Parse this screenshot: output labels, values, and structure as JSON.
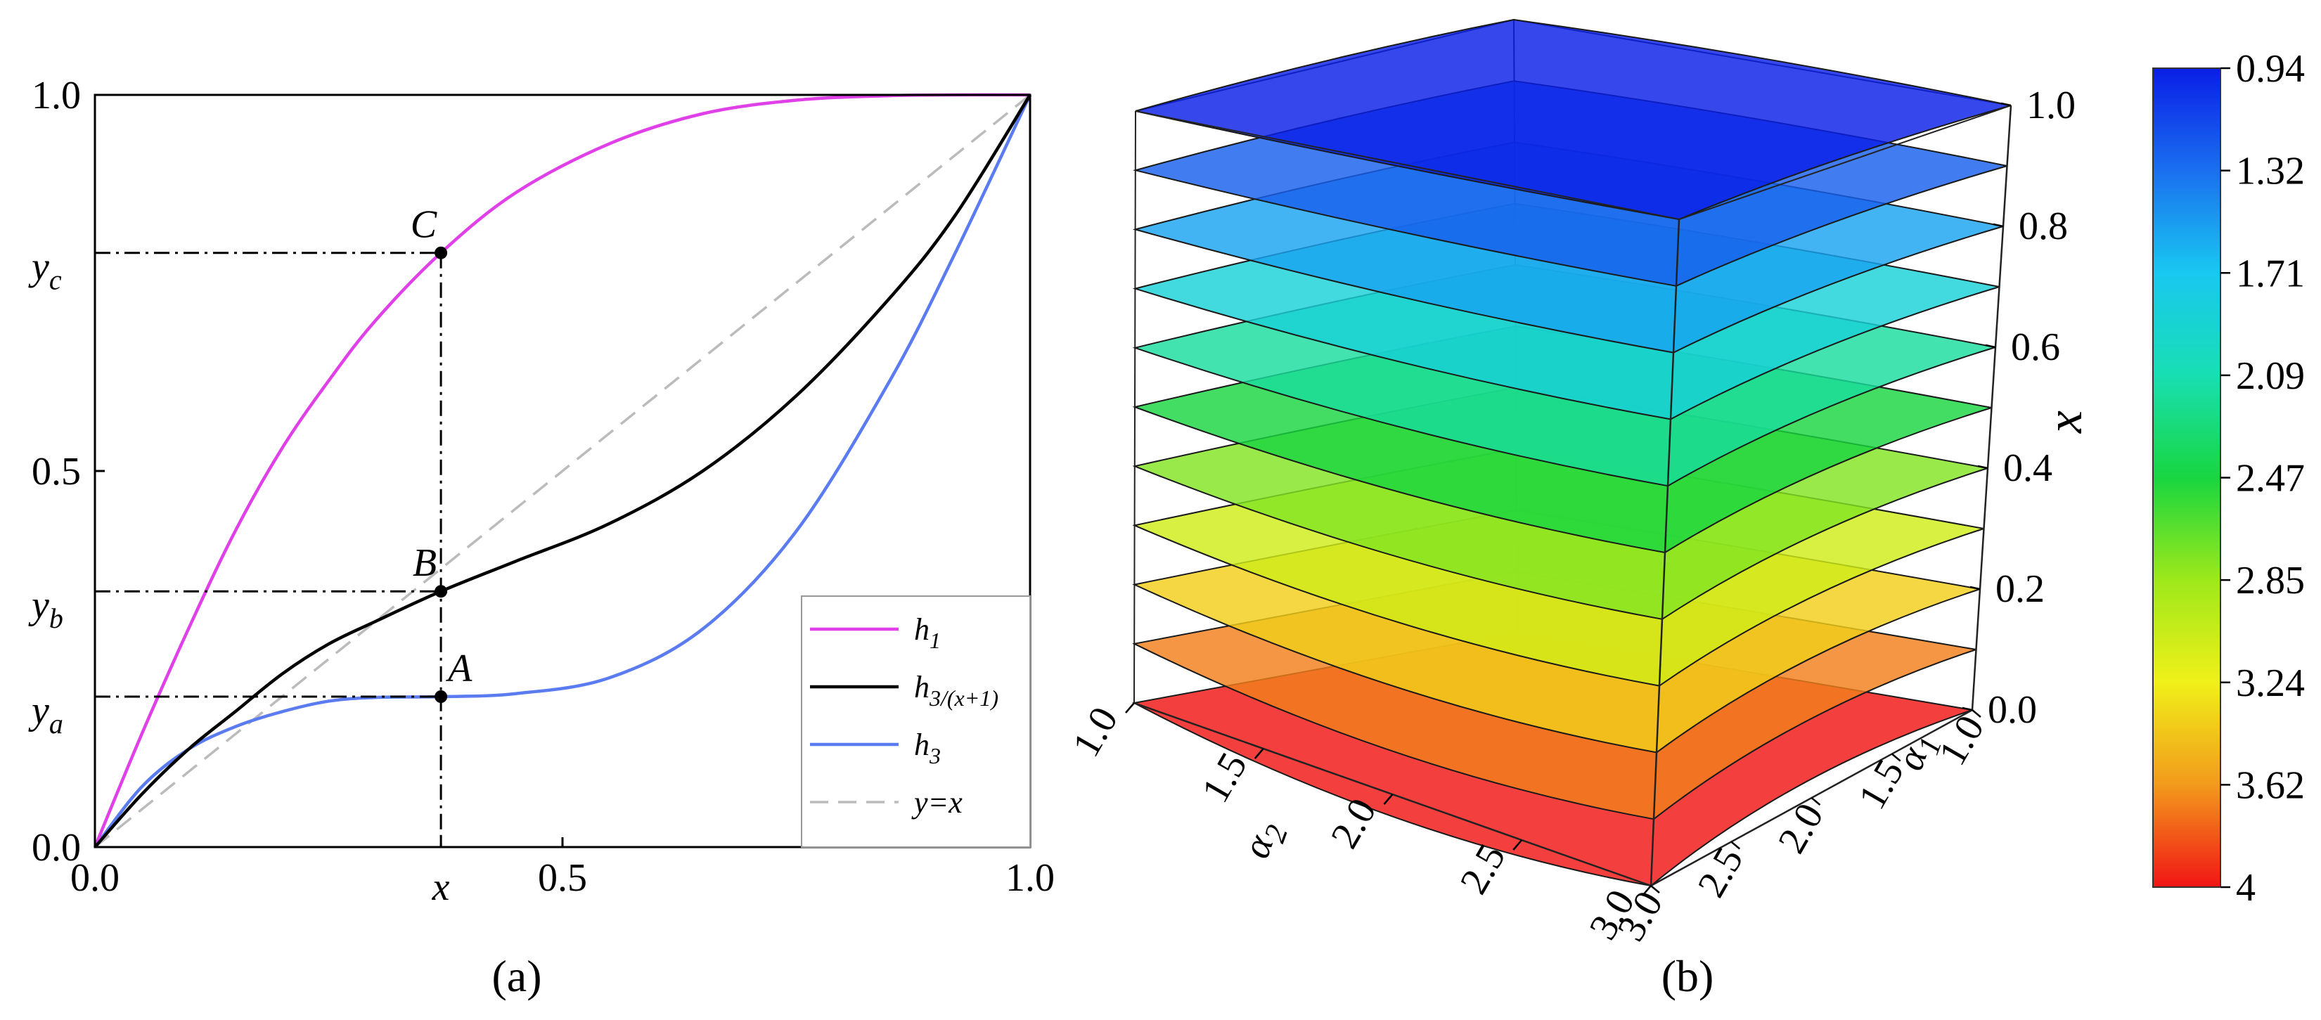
{
  "chart_data": [
    {
      "id": "a",
      "type": "line",
      "caption": "(a)",
      "xlim": [
        0,
        1
      ],
      "ylim": [
        0,
        1
      ],
      "x_ticks": [
        "0.0",
        "0.5",
        "1.0"
      ],
      "y_ticks": [
        "0.0",
        "0.5",
        "1.0"
      ],
      "x_marker_label": "x",
      "x_marker_value": 0.37,
      "series": [
        {
          "name": "h",
          "sub": "1",
          "color": "#e040e8",
          "style": "solid",
          "x": [
            0,
            0.05,
            0.1,
            0.15,
            0.2,
            0.25,
            0.3,
            0.37,
            0.45,
            0.55,
            0.65,
            0.75,
            0.85,
            0.92,
            1.0
          ],
          "y": [
            0,
            0.15,
            0.29,
            0.42,
            0.53,
            0.62,
            0.7,
            0.79,
            0.87,
            0.935,
            0.975,
            0.993,
            0.999,
            1.0,
            1.0
          ]
        },
        {
          "name": "h",
          "sub": "3/(x+1)",
          "color": "#000000",
          "style": "solid",
          "x": [
            0,
            0.05,
            0.1,
            0.15,
            0.2,
            0.25,
            0.3,
            0.37,
            0.45,
            0.55,
            0.65,
            0.75,
            0.85,
            0.92,
            1.0
          ],
          "y": [
            0,
            0.07,
            0.13,
            0.18,
            0.23,
            0.27,
            0.3,
            0.34,
            0.38,
            0.43,
            0.5,
            0.6,
            0.73,
            0.84,
            1.0
          ]
        },
        {
          "name": "h",
          "sub": "3",
          "color": "#5a7cf0",
          "style": "solid",
          "x": [
            0,
            0.05,
            0.1,
            0.15,
            0.2,
            0.25,
            0.3,
            0.37,
            0.45,
            0.55,
            0.65,
            0.75,
            0.85,
            0.92,
            1.0
          ],
          "y": [
            0,
            0.08,
            0.13,
            0.16,
            0.18,
            0.194,
            0.199,
            0.2,
            0.204,
            0.225,
            0.29,
            0.42,
            0.62,
            0.79,
            1.0
          ]
        },
        {
          "name": "y=x",
          "sub": "",
          "color": "#bbbbbb",
          "style": "dashed",
          "x": [
            0,
            1
          ],
          "y": [
            0,
            1
          ]
        }
      ],
      "points": [
        {
          "label": "C",
          "y_label": "y",
          "y_sub": "c",
          "x": 0.37,
          "y": 0.79
        },
        {
          "label": "B",
          "y_label": "y",
          "y_sub": "b",
          "x": 0.37,
          "y": 0.34
        },
        {
          "label": "A",
          "y_label": "y",
          "y_sub": "a",
          "x": 0.37,
          "y": 0.2
        }
      ]
    },
    {
      "id": "b",
      "type": "surface3d",
      "caption": "(b)",
      "x_axis_label": "α",
      "x_axis_sub": "1",
      "y_axis_label": "α",
      "y_axis_sub": "2",
      "z_axis_label": "x",
      "alpha1_ticks": [
        "3.0",
        "2.5",
        "2.0",
        "1.5",
        "1.0"
      ],
      "alpha2_ticks": [
        "1.0",
        "1.5",
        "2.0",
        "2.5",
        "3.0"
      ],
      "z_ticks": [
        "0.0",
        "0.2",
        "0.4",
        "0.6",
        "0.8",
        "1.0"
      ],
      "z_levels": [
        0.0,
        0.1,
        0.2,
        0.3,
        0.4,
        0.5,
        0.6,
        0.7,
        0.8,
        0.9,
        1.0
      ],
      "colorbar": {
        "labels": [
          "0.94",
          "1.32",
          "1.71",
          "2.09",
          "2.47",
          "2.85",
          "3.24",
          "3.62",
          "4"
        ],
        "colors": [
          "#0a1ee6",
          "#1a6fef",
          "#19c8f0",
          "#18dfb3",
          "#18d640",
          "#9ee81a",
          "#f0f019",
          "#f29a1c",
          "#f11515"
        ]
      }
    }
  ],
  "legend_entries": [
    {
      "name": "h",
      "sub": "1"
    },
    {
      "name": "h",
      "sub": "3/(x+1)"
    },
    {
      "name": "h",
      "sub": "3"
    },
    {
      "name": "y=x",
      "sub": ""
    }
  ]
}
